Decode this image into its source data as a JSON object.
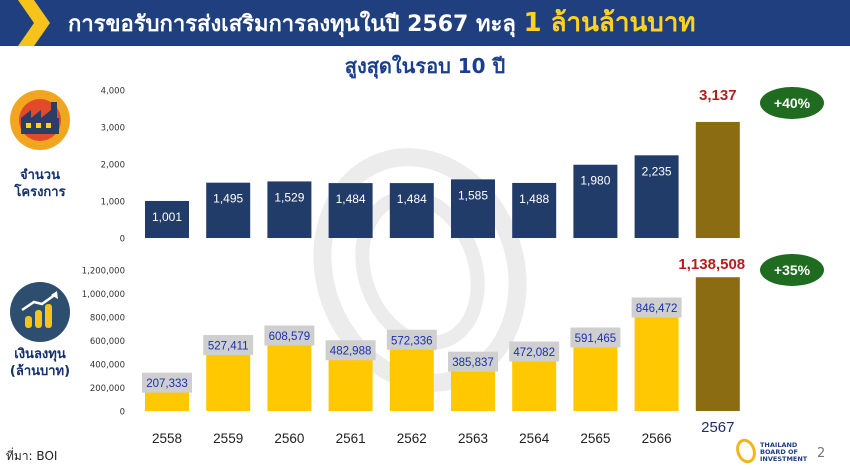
{
  "header": {
    "title_main": "การขอรับการส่งเสริมการลงทุนในปี 2567 ทะลุ ",
    "title_highlight": "1 ล้านล้านบาท"
  },
  "subtitle": "สูงสุดในรอบ 10 ปี",
  "top_label": [
    "จำนวน",
    "โครงการ"
  ],
  "bottom_label": [
    "เงินลงทุน",
    "(ล้านบาท)"
  ],
  "source": "ที่มา: BOI",
  "page_number": "2",
  "logo_text": [
    "THAILAND",
    "BOARD OF",
    "INVESTMENT"
  ],
  "colors": {
    "header_bg": "#1f3f7f",
    "navy_bar": "#223c6a",
    "gold_bar": "#ffc800",
    "highlight_bar": "#8c6c12",
    "highlight_label": "#b41e1e",
    "growth_badge": "#1f6b1f"
  },
  "chart_data": [
    {
      "type": "bar",
      "categories": [
        "2558",
        "2559",
        "2560",
        "2561",
        "2562",
        "2563",
        "2564",
        "2565",
        "2566",
        "2567"
      ],
      "values": [
        1001,
        1495,
        1529,
        1484,
        1484,
        1585,
        1488,
        1980,
        2235,
        3137
      ],
      "labels": [
        "1,001",
        "1,495",
        "1,529",
        "1,484",
        "1,484",
        "1,585",
        "1,488",
        "1,980",
        "2,235",
        "3,137"
      ],
      "ylim": [
        0,
        4000
      ],
      "yticks": [
        "0",
        "1,000",
        "2,000",
        "3,000",
        "4,000"
      ],
      "growth": "+40%"
    },
    {
      "type": "bar",
      "categories": [
        "2558",
        "2559",
        "2560",
        "2561",
        "2562",
        "2563",
        "2564",
        "2565",
        "2566",
        "2567"
      ],
      "values": [
        207333,
        527411,
        608579,
        482988,
        572336,
        385837,
        472082,
        591465,
        846472,
        1138508
      ],
      "labels": [
        "207,333",
        "527,411",
        "608,579",
        "482,988",
        "572,336",
        "385,837",
        "472,082",
        "591,465",
        "846,472",
        "1,138,508"
      ],
      "ylim": [
        0,
        1200000
      ],
      "yticks": [
        "0",
        "200,000",
        "400,000",
        "600,000",
        "800,000",
        "1,000,000",
        "1,200,000"
      ],
      "growth": "+35%"
    }
  ]
}
